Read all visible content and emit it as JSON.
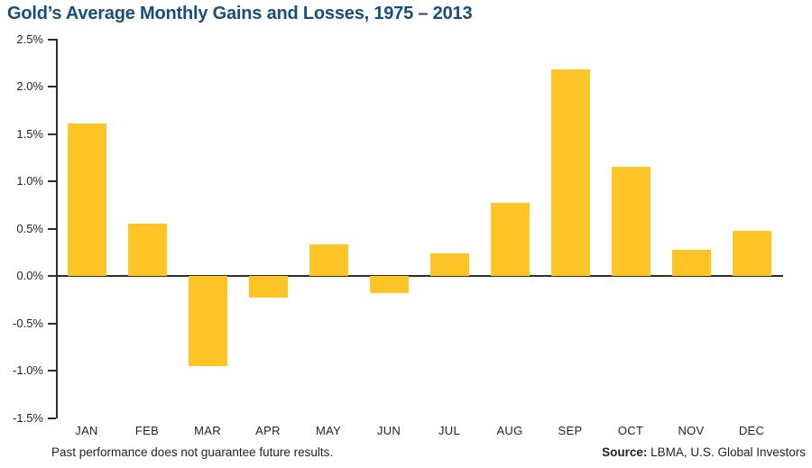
{
  "title": "Gold’s Average Monthly Gains and Losses, 1975 – 2013",
  "footer": {
    "disclaimer": "Past performance does not guarantee future results.",
    "source_label": "Source:",
    "source_text": " LBMA, U.S. Global Investors"
  },
  "colors": {
    "bar": "#FFC425",
    "title": "#164E7E",
    "axis": "#2E2E2E",
    "text": "#231F20"
  },
  "chart_data": {
    "type": "bar",
    "title": "Gold’s Average Monthly Gains and Losses, 1975 – 2013",
    "categories": [
      "JAN",
      "FEB",
      "MAR",
      "APR",
      "MAY",
      "JUN",
      "JUL",
      "AUG",
      "SEP",
      "OCT",
      "NOV",
      "DEC"
    ],
    "values": [
      1.61,
      0.55,
      -0.95,
      -0.23,
      0.33,
      -0.18,
      0.24,
      0.77,
      2.18,
      1.15,
      0.28,
      0.48
    ],
    "value_unit": "%",
    "xlabel": "",
    "ylabel": "",
    "ylim": [
      -1.5,
      2.5
    ],
    "ytick_labels": [
      "2.5%",
      "2.0%",
      "1.5%",
      "1.0%",
      "0.5%",
      "0.0%",
      "-0.5%",
      "-1.0%",
      "-1.5%"
    ],
    "ytick_values": [
      2.5,
      2.0,
      1.5,
      1.0,
      0.5,
      0.0,
      -0.5,
      -1.0,
      -1.5
    ],
    "grid": false,
    "legend": false,
    "baseline": 0
  }
}
